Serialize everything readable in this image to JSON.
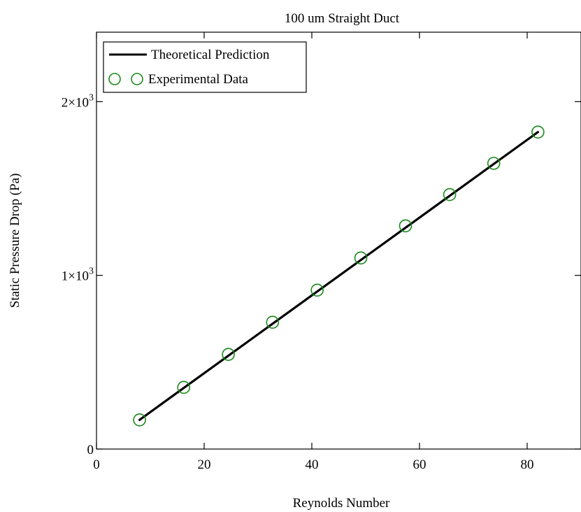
{
  "chart_data": {
    "type": "line",
    "title": "100 um Straight Duct",
    "xlabel": "Reynolds Number",
    "ylabel": "Static Pressure Drop (Pa)",
    "xlim": [
      0,
      90
    ],
    "ylim": [
      0,
      2400
    ],
    "grid": false,
    "legend_position": "top-left",
    "x_ticks": [
      {
        "value": 0,
        "label": "0"
      },
      {
        "value": 20,
        "label": "20"
      },
      {
        "value": 40,
        "label": "40"
      },
      {
        "value": 60,
        "label": "60"
      },
      {
        "value": 80,
        "label": "80"
      }
    ],
    "y_ticks": [
      {
        "value": 0,
        "mantissa": "0",
        "exponent": ""
      },
      {
        "value": 1000,
        "mantissa": "1×10",
        "exponent": "3"
      },
      {
        "value": 2000,
        "mantissa": "2×10",
        "exponent": "3"
      }
    ],
    "series": [
      {
        "name": "Theoretical Prediction",
        "style": "line",
        "color": "#000000",
        "x": [
          8.0,
          82.0
        ],
        "y": [
          168,
          1825
        ]
      },
      {
        "name": "Experimental Data",
        "style": "marker-circle",
        "color": "#1a8a1a",
        "x": [
          8.0,
          16.2,
          24.5,
          32.7,
          41.0,
          49.1,
          57.4,
          65.6,
          73.8,
          82.0
        ],
        "y": [
          168,
          355,
          545,
          730,
          915,
          1100,
          1285,
          1465,
          1645,
          1825
        ]
      }
    ]
  }
}
